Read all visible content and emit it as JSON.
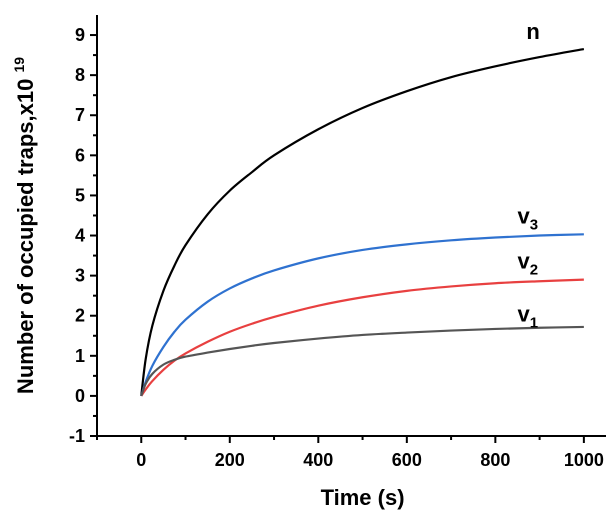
{
  "chart_data": {
    "type": "line",
    "xlabel": "Time (s)",
    "ylabel": "Number of occupied traps,x10",
    "ylabel_exponent": "19",
    "xlim": [
      -100,
      1050
    ],
    "ylim": [
      -1,
      9.5
    ],
    "xticks": [
      0,
      200,
      400,
      600,
      800,
      1000
    ],
    "yticks": [
      -1,
      0,
      1,
      2,
      3,
      4,
      5,
      6,
      7,
      8,
      9
    ],
    "grid": false,
    "series": [
      {
        "name": "n",
        "color": "#000000",
        "x": [
          0,
          10,
          25,
          50,
          75,
          100,
          150,
          200,
          250,
          300,
          400,
          500,
          600,
          700,
          800,
          900,
          1000
        ],
        "y": [
          0,
          0.92,
          1.75,
          2.62,
          3.25,
          3.76,
          4.53,
          5.12,
          5.58,
          6.0,
          6.65,
          7.18,
          7.6,
          7.95,
          8.22,
          8.45,
          8.65
        ]
      },
      {
        "name": "v3",
        "color": "#2f72d0",
        "x": [
          0,
          10,
          25,
          50,
          75,
          100,
          150,
          200,
          250,
          300,
          400,
          500,
          600,
          700,
          800,
          900,
          1000
        ],
        "y": [
          0,
          0.35,
          0.75,
          1.22,
          1.6,
          1.9,
          2.35,
          2.68,
          2.93,
          3.13,
          3.43,
          3.64,
          3.78,
          3.88,
          3.95,
          4.0,
          4.03
        ]
      },
      {
        "name": "v2",
        "color": "#e84040",
        "x": [
          0,
          10,
          25,
          50,
          75,
          100,
          150,
          200,
          250,
          300,
          400,
          500,
          600,
          700,
          800,
          900,
          1000
        ],
        "y": [
          0,
          0.16,
          0.37,
          0.65,
          0.88,
          1.06,
          1.35,
          1.6,
          1.8,
          1.97,
          2.25,
          2.46,
          2.62,
          2.73,
          2.81,
          2.86,
          2.9
        ]
      },
      {
        "name": "v1",
        "color": "#555555",
        "x": [
          0,
          10,
          25,
          50,
          75,
          100,
          150,
          200,
          250,
          300,
          400,
          500,
          600,
          700,
          800,
          900,
          1000
        ],
        "y": [
          0,
          0.3,
          0.55,
          0.78,
          0.9,
          0.98,
          1.08,
          1.17,
          1.25,
          1.32,
          1.43,
          1.52,
          1.58,
          1.63,
          1.67,
          1.7,
          1.72
        ]
      }
    ],
    "annotations": [
      {
        "series": "n",
        "text": "n",
        "sub": "",
        "x": 870,
        "y": 8.9
      },
      {
        "series": "v3",
        "text": "v",
        "sub": "3",
        "x": 850,
        "y": 4.3
      },
      {
        "series": "v2",
        "text": "v",
        "sub": "2",
        "x": 850,
        "y": 3.18
      },
      {
        "series": "v1",
        "text": "v",
        "sub": "1",
        "x": 850,
        "y": 1.85
      }
    ]
  }
}
